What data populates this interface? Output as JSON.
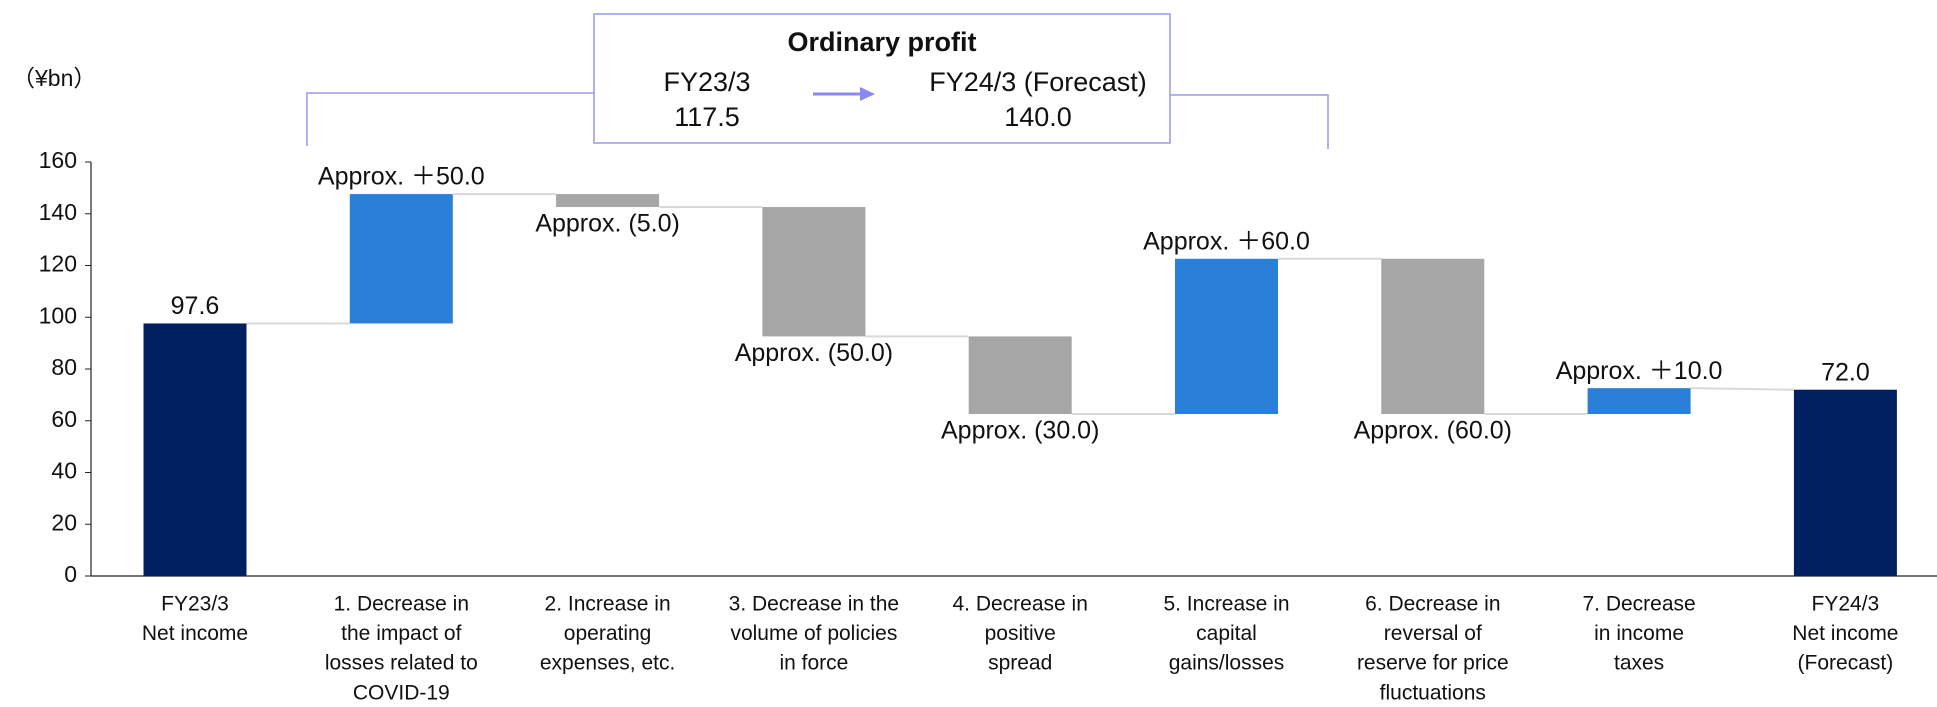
{
  "chart_data": {
    "type": "waterfall",
    "y_unit_label": "（¥bn）",
    "categories": [
      [
        "FY23/3",
        "Net income"
      ],
      [
        "1. Decrease in",
        "the impact of",
        "losses related to",
        "COVID-19"
      ],
      [
        "2. Increase in",
        "operating",
        "expenses, etc."
      ],
      [
        "3. Decrease in the",
        "volume of policies",
        "in force"
      ],
      [
        "4. Decrease in",
        "positive",
        "spread"
      ],
      [
        "5. Increase in",
        "capital",
        "gains/losses"
      ],
      [
        "6. Decrease in",
        "reversal of",
        "reserve for price",
        "fluctuations"
      ],
      [
        "7. Decrease",
        "in income",
        "taxes"
      ],
      [
        "FY24/3",
        "Net income",
        "(Forecast)"
      ]
    ],
    "measures": [
      "total",
      "relative",
      "relative",
      "relative",
      "relative",
      "relative",
      "relative",
      "relative",
      "total"
    ],
    "values": [
      97.6,
      50.0,
      -5.0,
      -50.0,
      -30.0,
      60.0,
      -60.0,
      10.0,
      72.0
    ],
    "value_labels": [
      "97.6",
      "Approx. ＋50.0",
      "Approx. (5.0)",
      "Approx. (50.0)",
      "Approx. (30.0)",
      "Approx. ＋60.0",
      "Approx. (60.0)",
      "Approx. ＋10.0",
      "72.0"
    ],
    "colors": {
      "total": "#002060",
      "increase": "#2a7fd8",
      "decrease": "#a6a6a6"
    },
    "ylim": [
      0,
      160
    ],
    "yticks": [
      0,
      20,
      40,
      60,
      80,
      100,
      120,
      140,
      160
    ],
    "annotation": {
      "title": "Ordinary profit",
      "from_label": "FY23/3",
      "from_value": "117.5",
      "to_label": "FY24/3 (Forecast)",
      "to_value": "140.0"
    }
  }
}
